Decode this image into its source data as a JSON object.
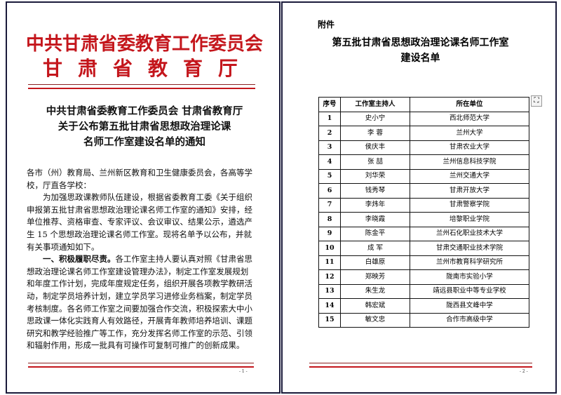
{
  "page1": {
    "header_line1": "中共甘肃省委教育工作委员会",
    "header_line2": "甘肃省教育厅",
    "title_lines": [
      "中共甘肃省委教育工作委员会  甘肃省教育厅",
      "关于公布第五批甘肃省思想政治理论课",
      "名师工作室建设名单的通知"
    ],
    "body_lines": [
      "各市（州）教育局、兰州新区教育和卫生健康委员会，各高等学",
      "校，厅直各学校：",
      "　　为加强思政课教师队伍建设，根据省委教育工委《关于组织",
      "申报第五批甘肃省思想政治理论课名师工作室的通知》安排，经",
      "单位推荐、资格审查、专家评议、会议审议、结果公示，遴选产",
      "生 15 个思想政治理论课名师工作室。现将名单予以公布，并就",
      "有关事项通知如下。"
    ],
    "section_heading": "一、积极履职尽责。",
    "section_lines": [
      "各工作室主持人要认真对照《甘肃省思",
      "想政治理论课名师工作室建设管理办法》，制定工作室发展规划",
      "和年度工作计划，完成年度规定任务，组织开展各项教学教研活",
      "动，制定学员培养计划，建立学员学习进修业务档案，制定学员",
      "考核制度。各名师工作室之间要加强合作交流，积极探索大中小",
      "思政课一体化实践育人有效路径，开展青年教师培养培训、课题",
      "研究和教学经验推广等工作，充分发挥名师工作室的示范、引领",
      "和辐射作用，形成一批具有可操作可复制可推广的创新成果。"
    ],
    "page_number": "- 1 -"
  },
  "page2": {
    "attachment_label": "附件",
    "title_lines": [
      "第五批甘肃省思想政治理论课名师工作室",
      "建设名单"
    ],
    "table": {
      "headers": [
        "序号",
        "工作室主持人",
        "所在单位"
      ],
      "rows": [
        [
          "1",
          "史小宁",
          "西北师范大学"
        ],
        [
          "2",
          "李  蓉",
          "兰州大学"
        ],
        [
          "3",
          "侯庆丰",
          "甘肃农业大学"
        ],
        [
          "4",
          "张  喆",
          "兰州信息科技学院"
        ],
        [
          "5",
          "刘华荣",
          "兰州交通大学"
        ],
        [
          "6",
          "钱秀琴",
          "甘肃开放大学"
        ],
        [
          "7",
          "李炜年",
          "甘肃警察学院"
        ],
        [
          "8",
          "李晓霞",
          "培黎职业学院"
        ],
        [
          "9",
          "陈金平",
          "兰州石化职业技术大学"
        ],
        [
          "10",
          "成  军",
          "甘肃交通职业技术学院"
        ],
        [
          "11",
          "白雄原",
          "兰州市教育科学研究所"
        ],
        [
          "12",
          "郑映芳",
          "陇南市实验小学"
        ],
        [
          "13",
          "朱生龙",
          "靖远县职业中等专业学校"
        ],
        [
          "14",
          "韩宏斌",
          "陇西县文峰中学"
        ],
        [
          "15",
          "敏文忠",
          "合作市高级中学"
        ]
      ]
    },
    "page_number": "- 2 -"
  },
  "colors": {
    "red": "#c4161c",
    "frame": "#1a1a3a"
  },
  "icons": {
    "side_icon": "fullscreen-icon"
  }
}
